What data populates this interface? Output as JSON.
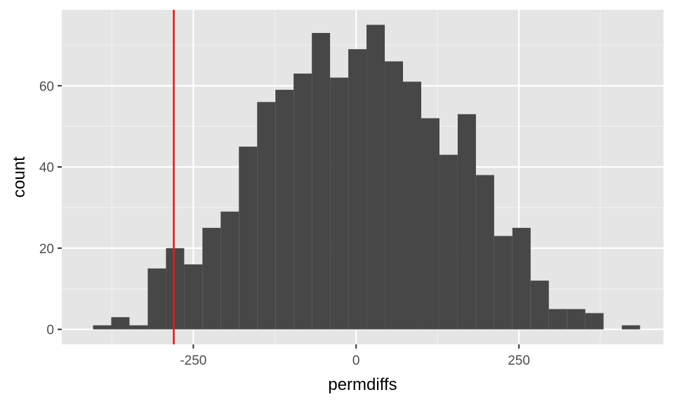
{
  "chart_data": {
    "type": "histogram",
    "xlabel": "permdiffs",
    "ylabel": "count",
    "xlim": [
      -452,
      472
    ],
    "ylim": [
      -3.7,
      78.7
    ],
    "x_ticks": [
      -250,
      0,
      250
    ],
    "y_ticks": [
      0,
      20,
      40,
      60
    ],
    "x_minor_ticks": [
      -375,
      -125,
      125,
      375
    ],
    "y_minor_ticks": [
      10,
      30,
      50,
      70
    ],
    "bin_width": 28,
    "bins": [
      {
        "x0": -404,
        "x1": -376,
        "count": 1
      },
      {
        "x0": -376,
        "x1": -348,
        "count": 3
      },
      {
        "x0": -348,
        "x1": -320,
        "count": 1
      },
      {
        "x0": -320,
        "x1": -292,
        "count": 15
      },
      {
        "x0": -292,
        "x1": -264,
        "count": 20
      },
      {
        "x0": -264,
        "x1": -236,
        "count": 16
      },
      {
        "x0": -236,
        "x1": -208,
        "count": 25
      },
      {
        "x0": -208,
        "x1": -180,
        "count": 29
      },
      {
        "x0": -180,
        "x1": -152,
        "count": 45
      },
      {
        "x0": -152,
        "x1": -124,
        "count": 56
      },
      {
        "x0": -124,
        "x1": -96,
        "count": 59
      },
      {
        "x0": -96,
        "x1": -68,
        "count": 63
      },
      {
        "x0": -68,
        "x1": -40,
        "count": 73
      },
      {
        "x0": -40,
        "x1": -12,
        "count": 62
      },
      {
        "x0": -12,
        "x1": 16,
        "count": 69
      },
      {
        "x0": 16,
        "x1": 44,
        "count": 75
      },
      {
        "x0": 44,
        "x1": 72,
        "count": 66
      },
      {
        "x0": 72,
        "x1": 100,
        "count": 61
      },
      {
        "x0": 100,
        "x1": 128,
        "count": 52
      },
      {
        "x0": 128,
        "x1": 156,
        "count": 43
      },
      {
        "x0": 156,
        "x1": 184,
        "count": 53
      },
      {
        "x0": 184,
        "x1": 212,
        "count": 38
      },
      {
        "x0": 212,
        "x1": 240,
        "count": 23
      },
      {
        "x0": 240,
        "x1": 268,
        "count": 25
      },
      {
        "x0": 268,
        "x1": 296,
        "count": 12
      },
      {
        "x0": 296,
        "x1": 324,
        "count": 5
      },
      {
        "x0": 324,
        "x1": 352,
        "count": 5
      },
      {
        "x0": 352,
        "x1": 380,
        "count": 4
      },
      {
        "x0": 380,
        "x1": 408,
        "count": 0
      },
      {
        "x0": 408,
        "x1": 436,
        "count": 1
      }
    ],
    "reference_line": {
      "x": -280,
      "color": "#e31a1c"
    },
    "bar_color": "#474747",
    "panel_background": "#e5e5e5",
    "grid": true
  }
}
